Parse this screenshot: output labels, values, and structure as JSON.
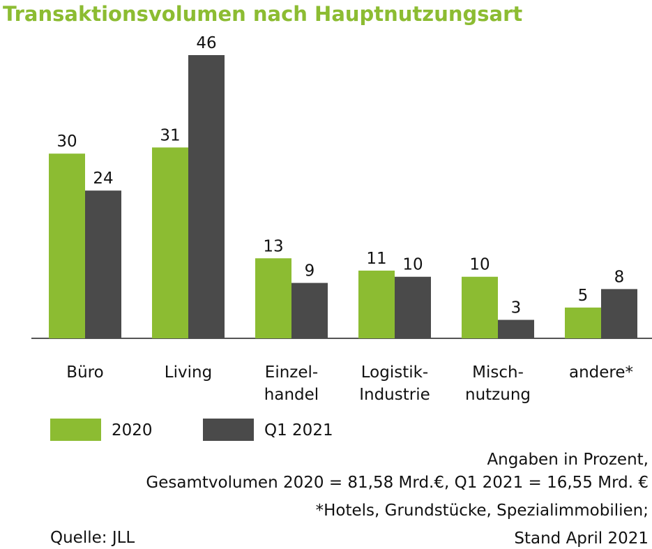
{
  "chart_data": {
    "type": "bar",
    "title": "Transaktionsvolumen nach Hauptnutzungsart",
    "categories": [
      "Büro",
      "Living",
      "Einzel-\nhandel",
      "Logistik-\nIndustrie",
      "Misch-\nnutzung",
      "andere*"
    ],
    "series": [
      {
        "name": "2020",
        "color": "#8cbc32",
        "values": [
          30,
          31,
          13,
          11,
          10,
          5
        ]
      },
      {
        "name": "Q1 2021",
        "color": "#4a4a4a",
        "values": [
          24,
          46,
          9,
          10,
          3,
          8
        ]
      }
    ],
    "notes": [
      "Angaben in Prozent,",
      "Gesamtvolumen 2020 = 81,58 Mrd.€, Q1 2021 = 16,55 Mrd. €",
      "*Hotels, Grundstücke, Spezialimmobilien;",
      "Stand April 2021"
    ],
    "source": "Quelle: JLL"
  }
}
